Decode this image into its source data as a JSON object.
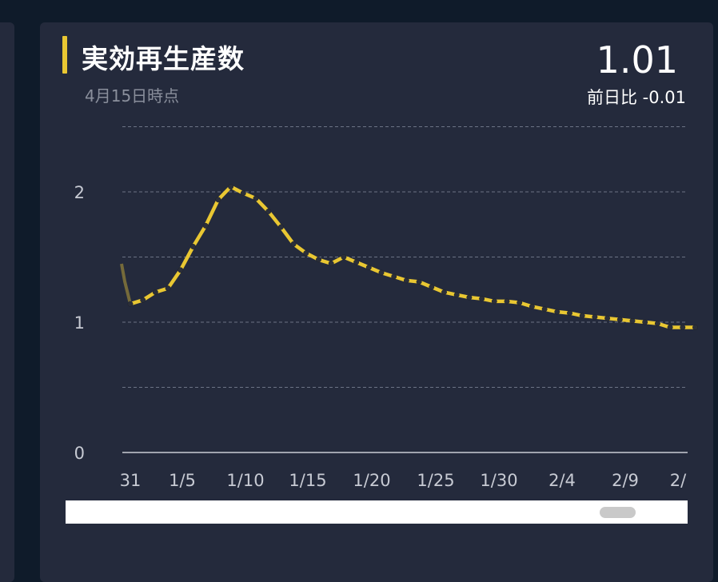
{
  "header": {
    "title": "実効再生産数",
    "subtitle": "4月15日時点",
    "value": "1.01",
    "diff": "前日比 -0.01"
  },
  "colors": {
    "accent": "#e9c732",
    "line": "#e9c732",
    "card": "#242a3c",
    "background": "#0f1b2a"
  },
  "chart_data": {
    "type": "line",
    "title": "実効再生産数",
    "ylim": [
      0,
      2.5
    ],
    "y_ticks": [
      "0",
      "1",
      "2"
    ],
    "x_tick_labels": [
      "31",
      "1/5",
      "1/10",
      "1/15",
      "1/20",
      "1/25",
      "1/30",
      "2/4",
      "2/9",
      "2/"
    ],
    "grid": true,
    "series": [
      {
        "x": [
          "12/31",
          "1/1",
          "1/2",
          "1/3",
          "1/4",
          "1/5",
          "1/6",
          "1/7",
          "1/8",
          "1/9",
          "1/10",
          "1/11",
          "1/12",
          "1/13",
          "1/14",
          "1/15",
          "1/16",
          "1/17",
          "1/18",
          "1/19",
          "1/20",
          "1/21",
          "1/22",
          "1/23",
          "1/24",
          "1/25",
          "1/26",
          "1/27",
          "1/28",
          "1/29",
          "1/30",
          "1/31",
          "2/1",
          "2/2",
          "2/3",
          "2/4",
          "2/5",
          "2/6",
          "2/7",
          "2/8",
          "2/9",
          "2/10",
          "2/11",
          "2/12",
          "2/13",
          "2/14"
        ],
        "values": [
          1.14,
          1.17,
          1.23,
          1.26,
          1.4,
          1.58,
          1.74,
          1.94,
          2.04,
          1.99,
          1.95,
          1.85,
          1.73,
          1.6,
          1.53,
          1.48,
          1.45,
          1.5,
          1.46,
          1.42,
          1.38,
          1.35,
          1.32,
          1.31,
          1.27,
          1.23,
          1.21,
          1.19,
          1.18,
          1.16,
          1.16,
          1.15,
          1.12,
          1.1,
          1.08,
          1.07,
          1.05,
          1.04,
          1.03,
          1.02,
          1.01,
          1.0,
          0.99,
          0.96,
          0.96,
          0.96
        ]
      }
    ]
  }
}
